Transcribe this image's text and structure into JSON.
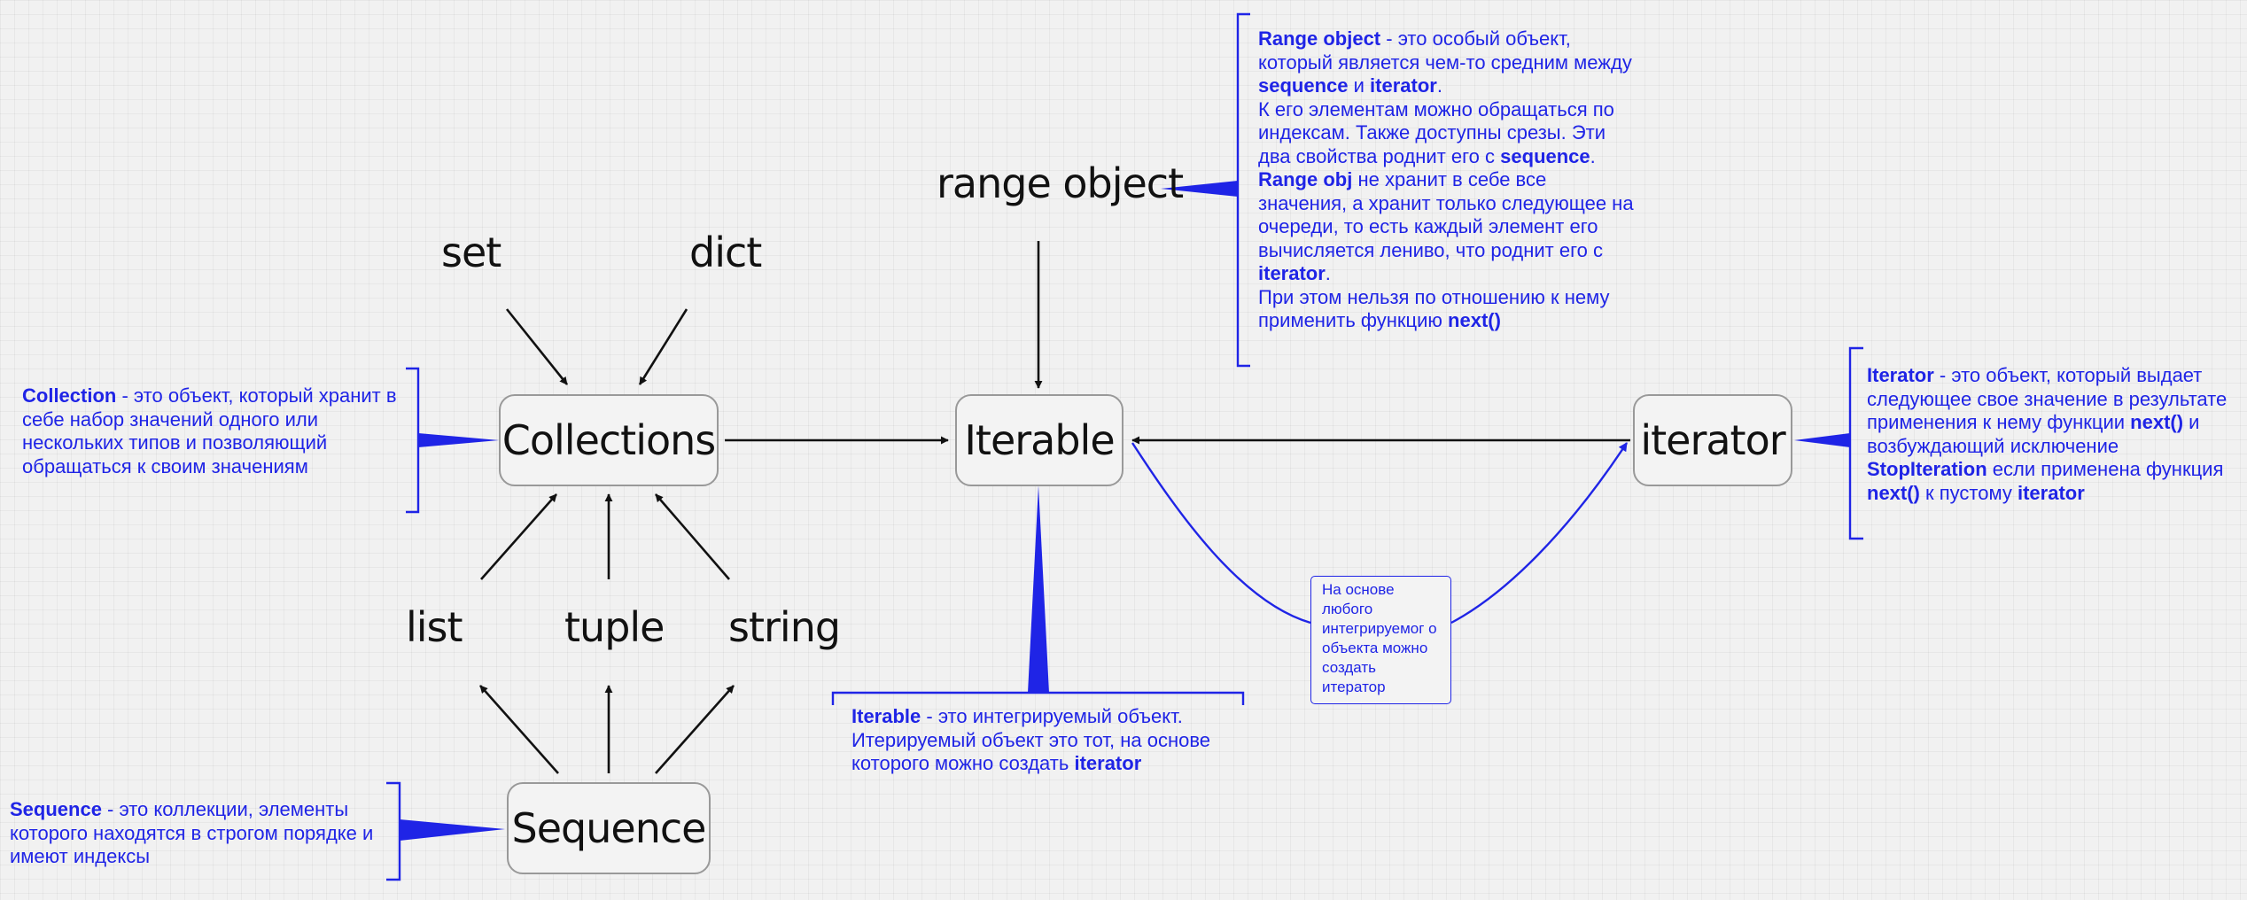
{
  "nodes": {
    "collections": "Collections",
    "iterable": "Iterable",
    "iterator": "iterator",
    "sequence": "Sequence"
  },
  "labels": {
    "set": "set",
    "dict": "dict",
    "range_object": "range object",
    "list": "list",
    "tuple": "tuple",
    "string": "string"
  },
  "notes": {
    "collection": {
      "term": "Collection",
      "text": " - это объект, который хранит в себе набор значений одного или нескольких типов и позволяющий обращаться к своим значениям"
    },
    "sequence": {
      "term": "Sequence",
      "text": " - это коллекции, элементы которого находятся в строгом порядке и имеют индексы"
    },
    "iterable": {
      "term": "Iterable",
      "text1": " - это интегрируемый объект. Итерируемый объект это тот, на основе которого можно создать ",
      "term2": "iterator"
    },
    "iterator": {
      "term": "Iterator",
      "t1": " - это объект, который выдает следующее свое значение в результате применения к нему функции ",
      "b1": "next()",
      "t2": " и возбуждающий исключение ",
      "b2": "StopIteration",
      "t3": " если применена функция ",
      "b3": "next()",
      "t4": " к пустому ",
      "b4": "iterator"
    },
    "range": {
      "b1": "Range object",
      "t1": " - это особый объект, который является чем-то средним между ",
      "b2": "sequence",
      "t2": " и ",
      "b3": "iterator",
      "t3": ".",
      "t4": "К его элементам можно обращаться по индексам. Также доступны срезы. Эти два свойства роднит его с ",
      "b4": "sequence",
      "t5": ".",
      "b5": "Range obj",
      "t6": " не хранит в себе все значения, а хранит только следующее на очереди, то есть каждый элемент его вычисляется лениво, что роднит его с ",
      "b6": "iterator",
      "t7": ".",
      "t8": "При этом нельзя по отношению к нему применить функцию ",
      "b7": "next()"
    },
    "callout": "На основе любого интегрируемог о объекта можно создать итератор"
  },
  "colors": {
    "note": "#1f24e6",
    "arrow": "#111111",
    "node_border": "#999999"
  }
}
